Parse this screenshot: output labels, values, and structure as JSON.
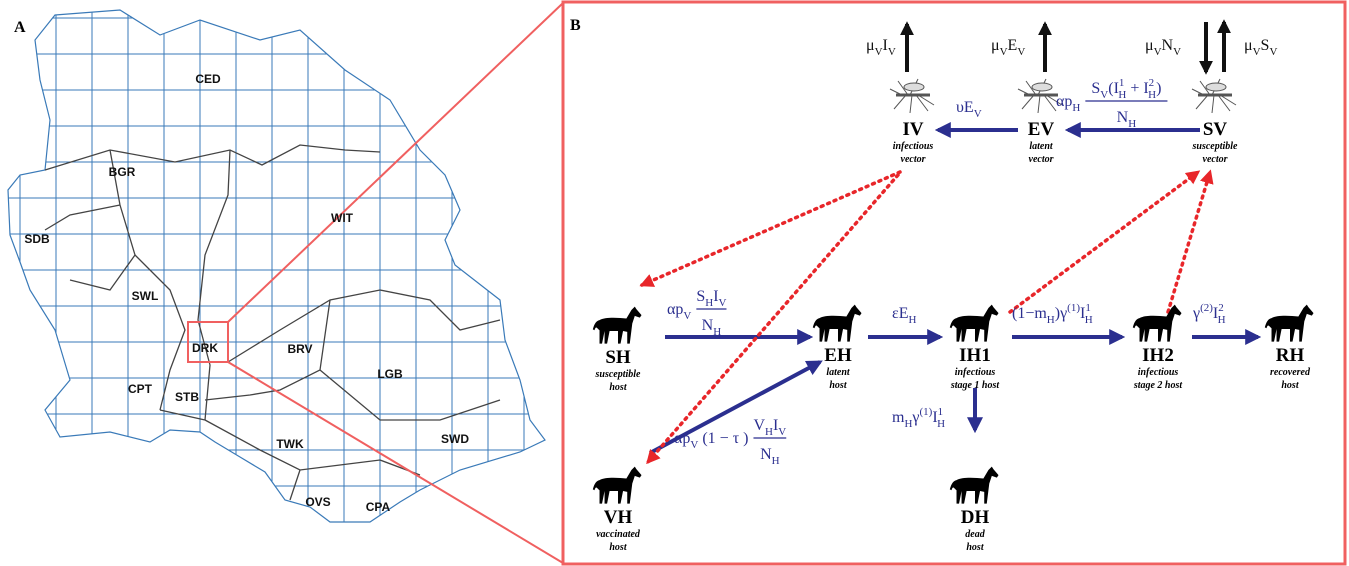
{
  "panels": {
    "a": {
      "label": "A",
      "regions": [
        "CED",
        "BGR",
        "WIT",
        "SDB",
        "SWL",
        "DRK",
        "BRV",
        "LGB",
        "CPT",
        "STB",
        "TWK",
        "SWD",
        "OVS",
        "CPA"
      ]
    },
    "b": {
      "label": "B"
    }
  },
  "nodes": [
    {
      "label": "IV",
      "sub": [
        "infectious",
        "vector"
      ]
    },
    {
      "label": "EV",
      "sub": [
        "latent",
        "vector"
      ]
    },
    {
      "label": "SV",
      "sub": [
        "susceptible",
        "vector"
      ]
    },
    {
      "label": "SH",
      "sub": [
        "susceptible",
        "host"
      ]
    },
    {
      "label": "EH",
      "sub": [
        "latent",
        "host"
      ]
    },
    {
      "label": "IH1",
      "sub": [
        "infectious",
        "stage 1 host"
      ]
    },
    {
      "label": "IH2",
      "sub": [
        "infectious",
        "stage 2 host"
      ]
    },
    {
      "label": "RH",
      "sub": [
        "recovered",
        "host"
      ]
    },
    {
      "label": "VH",
      "sub": [
        "vaccinated",
        "host"
      ]
    },
    {
      "label": "DH",
      "sub": [
        "dead",
        "host"
      ]
    }
  ],
  "rates": [
    {
      "pre": [
        {
          "t": "μ"
        },
        {
          "sub": "V"
        },
        {
          "t": "I"
        },
        {
          "sub": "V"
        }
      ]
    },
    {
      "pre": [
        {
          "t": "μ"
        },
        {
          "sub": "V"
        },
        {
          "t": "E"
        },
        {
          "sub": "V"
        }
      ]
    },
    {
      "pre": [
        {
          "t": "μ"
        },
        {
          "sub": "V"
        },
        {
          "t": "N"
        },
        {
          "sub": "V"
        }
      ]
    },
    {
      "pre": [
        {
          "t": "μ"
        },
        {
          "sub": "V"
        },
        {
          "t": "S"
        },
        {
          "sub": "V"
        }
      ]
    },
    {
      "pre": [
        {
          "t": "υE"
        },
        {
          "sub": "V"
        }
      ]
    },
    {
      "pre": [
        {
          "t": "αp"
        },
        {
          "sub": "H"
        }
      ],
      "num": [
        {
          "t": "S"
        },
        {
          "sub": "V"
        },
        {
          "t": "(I"
        },
        {
          "sup": "1",
          "sub": "H"
        },
        {
          "t": " + I"
        },
        {
          "sup": "2",
          "sub": "H"
        },
        {
          "t": ")"
        }
      ],
      "den": [
        {
          "t": "N"
        },
        {
          "sub": "H"
        }
      ]
    },
    {
      "pre": [
        {
          "t": "αp"
        },
        {
          "sub": "V"
        }
      ],
      "num": [
        {
          "t": "S"
        },
        {
          "sub": "H"
        },
        {
          "t": "I"
        },
        {
          "sub": "V"
        }
      ],
      "den": [
        {
          "t": "N"
        },
        {
          "sub": "H"
        }
      ]
    },
    {
      "pre": [
        {
          "t": "εE"
        },
        {
          "sub": "H"
        }
      ]
    },
    {
      "pre": [
        {
          "t": "(1−m"
        },
        {
          "sub": "H"
        },
        {
          "t": ")γ"
        },
        {
          "sup": "(1)"
        },
        {
          "t": "I"
        },
        {
          "sup": "1",
          "sub": "H"
        }
      ]
    },
    {
      "pre": [
        {
          "t": "γ"
        },
        {
          "sup": "(2)"
        },
        {
          "t": "I"
        },
        {
          "sup": "2",
          "sub": "H"
        }
      ]
    },
    {
      "pre": [
        {
          "t": "m"
        },
        {
          "sub": "H"
        },
        {
          "t": "γ"
        },
        {
          "sup": "(1)"
        },
        {
          "t": "I"
        },
        {
          "sup": "1",
          "sub": "H"
        }
      ]
    },
    {
      "pre": [
        {
          "t": "αp"
        },
        {
          "sub": "V"
        },
        {
          "t": " (1 − τ ) "
        }
      ],
      "num": [
        {
          "t": "V"
        },
        {
          "sub": "H"
        },
        {
          "t": "I"
        },
        {
          "sub": "V"
        }
      ],
      "den": [
        {
          "t": "N"
        },
        {
          "sub": "H"
        }
      ]
    }
  ]
}
